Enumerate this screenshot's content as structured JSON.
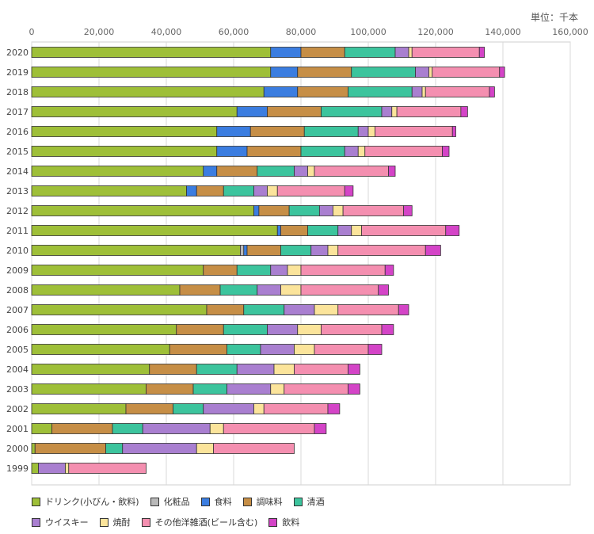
{
  "chart_data": {
    "type": "bar",
    "orientation": "horizontal",
    "stacked": true,
    "unit_label": "単位：千本",
    "xlim": [
      0,
      160000
    ],
    "x_ticks": [
      "0",
      "20,000",
      "40,000",
      "60,000",
      "80,000",
      "100,000",
      "120,000",
      "140,000",
      "160,000"
    ],
    "x_tick_values": [
      0,
      20000,
      40000,
      60000,
      80000,
      100000,
      120000,
      140000,
      160000
    ],
    "grid": true,
    "legend_position": "bottom",
    "categories": [
      "2020",
      "2019",
      "2018",
      "2017",
      "2016",
      "2015",
      "2014",
      "2013",
      "2012",
      "2011",
      "2010",
      "2009",
      "2008",
      "2007",
      "2006",
      "2005",
      "2004",
      "2003",
      "2002",
      "2001",
      "2000",
      "1999"
    ],
    "series": [
      {
        "name": "ドリンク(小びん・飲料)",
        "color": "#9ebf38",
        "values": [
          71000,
          71000,
          69000,
          61000,
          55000,
          55000,
          51000,
          46000,
          66000,
          73000,
          62000,
          51000,
          44000,
          52000,
          43000,
          41000,
          35000,
          34000,
          28000,
          6000,
          1000,
          2000
        ]
      },
      {
        "name": "化粧品",
        "color": "#b9b9b9",
        "values": [
          0,
          0,
          0,
          0,
          0,
          0,
          0,
          0,
          0,
          0,
          1000,
          0,
          0,
          0,
          0,
          0,
          0,
          0,
          0,
          0,
          0,
          0
        ]
      },
      {
        "name": "食料",
        "color": "#3b7de0",
        "values": [
          9000,
          8000,
          10000,
          9000,
          10000,
          9000,
          4000,
          3000,
          1500,
          1000,
          1000,
          0,
          0,
          0,
          0,
          0,
          0,
          0,
          0,
          0,
          0,
          0
        ]
      },
      {
        "name": "調味料",
        "color": "#c68e46",
        "values": [
          13000,
          16000,
          15000,
          16000,
          16000,
          16000,
          12000,
          8000,
          9000,
          8000,
          10000,
          10000,
          12000,
          11000,
          14000,
          17000,
          14000,
          14000,
          14000,
          18000,
          21000,
          0
        ]
      },
      {
        "name": "清酒",
        "color": "#3cc49d",
        "values": [
          15000,
          19000,
          19000,
          18000,
          16000,
          13000,
          11000,
          9000,
          9000,
          9000,
          9000,
          10000,
          11000,
          12000,
          13000,
          10000,
          12000,
          10000,
          9000,
          9000,
          5000,
          0
        ]
      },
      {
        "name": "ウイスキー",
        "color": "#a97fd0",
        "values": [
          4000,
          4000,
          3000,
          3000,
          3000,
          4000,
          4000,
          4000,
          4000,
          4000,
          5000,
          5000,
          7000,
          9000,
          9000,
          10000,
          11000,
          13000,
          15000,
          20000,
          22000,
          8000
        ]
      },
      {
        "name": "焼酎",
        "color": "#fbe49b",
        "values": [
          1000,
          1000,
          1000,
          1500,
          2000,
          2000,
          2000,
          3000,
          3000,
          3000,
          3000,
          4000,
          6000,
          7000,
          7000,
          6000,
          6000,
          4000,
          3000,
          4000,
          5000,
          1000
        ]
      },
      {
        "name": "その他洋雑酒(ビール含む)",
        "color": "#f48fb0",
        "values": [
          20000,
          20000,
          19000,
          19000,
          23000,
          23000,
          22000,
          20000,
          18000,
          25000,
          26000,
          25000,
          23000,
          18000,
          18000,
          16000,
          16000,
          19000,
          19000,
          27000,
          24000,
          23000
        ]
      },
      {
        "name": "飲料",
        "color": "#d444c7",
        "values": [
          1500,
          1500,
          1500,
          2000,
          1000,
          2000,
          2000,
          2500,
          2500,
          4000,
          4500,
          2500,
          3000,
          3000,
          3500,
          4000,
          3500,
          3500,
          3500,
          3500,
          0,
          0
        ]
      }
    ]
  }
}
